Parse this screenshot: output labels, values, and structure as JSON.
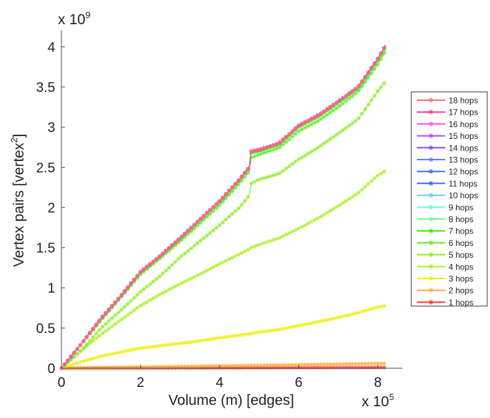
{
  "chart_data": {
    "type": "line",
    "title": "",
    "xlabel": "Volume (m) [edges]",
    "ylabel": "Vertex pairs [vertex",
    "ylabel_sup": "2",
    "ylabel_end": "]",
    "x_multiplier": "x 10",
    "x_multiplier_exp": "5",
    "y_multiplier": "x 10",
    "y_multiplier_exp": "9",
    "xlim": [
      0,
      8.7
    ],
    "ylim": [
      0,
      4.25
    ],
    "xticks": [
      "0",
      "2",
      "4",
      "6",
      "8"
    ],
    "xtick_values": [
      0,
      2,
      4,
      6,
      8
    ],
    "yticks": [
      "0",
      "0.5",
      "1",
      "1.5",
      "2",
      "2.5",
      "3",
      "3.5",
      "4"
    ],
    "ytick_values": [
      0,
      0.5,
      1,
      1.5,
      2,
      2.5,
      3,
      3.5,
      4
    ],
    "grid": false,
    "legend_position": "right",
    "x": [
      0,
      0.5,
      1,
      1.5,
      2,
      2.5,
      3,
      3.5,
      4,
      4.5,
      4.75,
      4.8,
      5,
      5.5,
      6,
      6.5,
      7,
      7.5,
      8,
      8.2
    ],
    "series": [
      {
        "name": "18 hops",
        "color": "#ff7070",
        "values": [
          0,
          0.3,
          0.62,
          0.9,
          1.2,
          1.4,
          1.62,
          1.85,
          2.08,
          2.35,
          2.5,
          2.7,
          2.72,
          2.8,
          3.02,
          3.15,
          3.32,
          3.5,
          3.85,
          4.02
        ]
      },
      {
        "name": "17 hops",
        "color": "#ff3399",
        "values": [
          0,
          0.3,
          0.62,
          0.9,
          1.2,
          1.4,
          1.62,
          1.85,
          2.08,
          2.35,
          2.5,
          2.7,
          2.72,
          2.8,
          3.02,
          3.15,
          3.32,
          3.5,
          3.85,
          4.02
        ]
      },
      {
        "name": "16 hops",
        "color": "#ff44ff",
        "values": [
          0,
          0.3,
          0.62,
          0.9,
          1.2,
          1.4,
          1.62,
          1.85,
          2.08,
          2.35,
          2.5,
          2.7,
          2.72,
          2.8,
          3.02,
          3.15,
          3.32,
          3.5,
          3.85,
          4.02
        ]
      },
      {
        "name": "15 hops",
        "color": "#bb44ff",
        "values": [
          0,
          0.3,
          0.62,
          0.9,
          1.2,
          1.4,
          1.62,
          1.85,
          2.08,
          2.35,
          2.5,
          2.7,
          2.72,
          2.8,
          3.02,
          3.15,
          3.32,
          3.5,
          3.85,
          4.02
        ]
      },
      {
        "name": "14 hops",
        "color": "#8844ff",
        "values": [
          0,
          0.3,
          0.62,
          0.9,
          1.2,
          1.4,
          1.62,
          1.85,
          2.08,
          2.35,
          2.5,
          2.7,
          2.72,
          2.8,
          3.02,
          3.15,
          3.32,
          3.5,
          3.85,
          4.02
        ]
      },
      {
        "name": "13 hops",
        "color": "#6677ff",
        "values": [
          0,
          0.3,
          0.62,
          0.9,
          1.2,
          1.4,
          1.62,
          1.85,
          2.08,
          2.35,
          2.5,
          2.7,
          2.72,
          2.8,
          3.02,
          3.15,
          3.32,
          3.5,
          3.85,
          4.02
        ]
      },
      {
        "name": "12 hops",
        "color": "#4466ff",
        "values": [
          0,
          0.3,
          0.62,
          0.9,
          1.2,
          1.4,
          1.62,
          1.85,
          2.08,
          2.35,
          2.5,
          2.7,
          2.72,
          2.8,
          3.02,
          3.15,
          3.32,
          3.5,
          3.85,
          4.02
        ]
      },
      {
        "name": "11 hops",
        "color": "#3366ff",
        "values": [
          0,
          0.3,
          0.62,
          0.9,
          1.2,
          1.4,
          1.62,
          1.85,
          2.08,
          2.35,
          2.5,
          2.7,
          2.72,
          2.8,
          3.02,
          3.15,
          3.32,
          3.5,
          3.85,
          4.02
        ]
      },
      {
        "name": "10 hops",
        "color": "#66ccff",
        "values": [
          0,
          0.3,
          0.62,
          0.9,
          1.2,
          1.4,
          1.62,
          1.85,
          2.08,
          2.35,
          2.5,
          2.7,
          2.72,
          2.8,
          3.02,
          3.15,
          3.32,
          3.5,
          3.85,
          4.02
        ]
      },
      {
        "name": "9 hops",
        "color": "#66ffdd",
        "values": [
          0,
          0.3,
          0.62,
          0.9,
          1.2,
          1.4,
          1.62,
          1.85,
          2.08,
          2.35,
          2.5,
          2.7,
          2.72,
          2.8,
          3.02,
          3.15,
          3.32,
          3.5,
          3.85,
          4.02
        ]
      },
      {
        "name": "8 hops",
        "color": "#66ff99",
        "values": [
          0,
          0.3,
          0.62,
          0.9,
          1.2,
          1.4,
          1.62,
          1.85,
          2.08,
          2.35,
          2.5,
          2.7,
          2.72,
          2.8,
          3.02,
          3.15,
          3.32,
          3.5,
          3.85,
          4.0
        ]
      },
      {
        "name": "7 hops",
        "color": "#33ee00",
        "values": [
          0,
          0.3,
          0.61,
          0.89,
          1.19,
          1.39,
          1.61,
          1.84,
          2.07,
          2.34,
          2.49,
          2.68,
          2.7,
          2.78,
          3.0,
          3.13,
          3.3,
          3.48,
          3.83,
          3.99
        ]
      },
      {
        "name": "6 hops",
        "color": "#55ee22",
        "values": [
          0,
          0.3,
          0.6,
          0.88,
          1.17,
          1.37,
          1.58,
          1.8,
          2.03,
          2.3,
          2.45,
          2.62,
          2.66,
          2.74,
          2.95,
          3.08,
          3.25,
          3.44,
          3.78,
          3.95
        ]
      },
      {
        "name": "5 hops",
        "color": "#88ee22",
        "values": [
          0,
          0.22,
          0.5,
          0.72,
          0.95,
          1.15,
          1.38,
          1.58,
          1.78,
          2.0,
          2.15,
          2.3,
          2.35,
          2.42,
          2.6,
          2.75,
          2.92,
          3.1,
          3.45,
          3.57
        ]
      },
      {
        "name": "4 hops",
        "color": "#aaee22",
        "values": [
          0,
          0.22,
          0.42,
          0.6,
          0.78,
          0.92,
          1.05,
          1.17,
          1.3,
          1.42,
          1.48,
          1.5,
          1.54,
          1.62,
          1.74,
          1.87,
          2.02,
          2.18,
          2.4,
          2.46
        ]
      },
      {
        "name": "3 hops",
        "color": "#eeee00",
        "values": [
          0,
          0.08,
          0.15,
          0.2,
          0.25,
          0.28,
          0.31,
          0.34,
          0.38,
          0.41,
          0.43,
          0.43,
          0.45,
          0.48,
          0.53,
          0.58,
          0.63,
          0.69,
          0.76,
          0.78
        ]
      },
      {
        "name": "2 hops",
        "color": "#ffaa33",
        "values": [
          0,
          0.004,
          0.008,
          0.011,
          0.015,
          0.018,
          0.022,
          0.026,
          0.029,
          0.033,
          0.035,
          0.035,
          0.037,
          0.04,
          0.044,
          0.048,
          0.051,
          0.055,
          0.059,
          0.06
        ]
      },
      {
        "name": "1 hops",
        "color": "#ff3333",
        "values": [
          0,
          0.001,
          0.001,
          0.002,
          0.002,
          0.003,
          0.004,
          0.004,
          0.005,
          0.005,
          0.006,
          0.006,
          0.006,
          0.007,
          0.007,
          0.008,
          0.009,
          0.009,
          0.01,
          0.01
        ]
      }
    ]
  }
}
